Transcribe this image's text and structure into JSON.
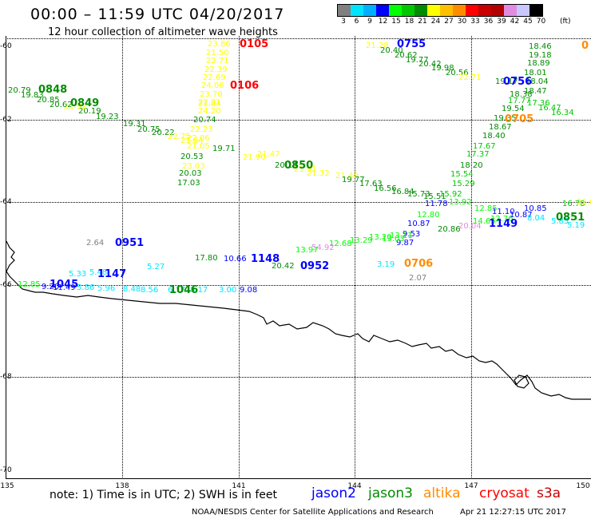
{
  "header": {
    "title": "00:00 – 11:59 UTC 04/20/2017",
    "subtitle": "12 hour collection of altimeter wave heights"
  },
  "legend": {
    "colors": [
      "#808080",
      "#00e5ff",
      "#00b0ff",
      "#0000ff",
      "#00ff00",
      "#00c800",
      "#008c00",
      "#ffff00",
      "#ffbf00",
      "#ff8c00",
      "#ff0000",
      "#c80000",
      "#b40000",
      "#e08ce0",
      "#c8c8ff",
      "#000000"
    ],
    "labels": [
      "3",
      "6",
      "9",
      "12",
      "15",
      "18",
      "21",
      "24",
      "27",
      "30",
      "33",
      "36",
      "39",
      "42",
      "45",
      "70"
    ],
    "unit": "(ft)"
  },
  "axes": {
    "lat_labels": [
      "-60",
      "-62",
      "-64",
      "-66",
      "-68",
      "-70"
    ],
    "lon_labels": [
      "135",
      "138",
      "141",
      "144",
      "147",
      "150"
    ]
  },
  "observations": [
    {
      "t": "20.79",
      "c": "#008c00"
    },
    {
      "t": "19.83",
      "c": "#008c00"
    },
    {
      "t": "20.85",
      "c": "#008c00"
    },
    {
      "t": "20.62",
      "c": "#008c00"
    },
    {
      "t": "20.19",
      "c": "#008c00"
    },
    {
      "t": "21.92",
      "c": "#ffff00"
    },
    {
      "t": "19.23",
      "c": "#008c00"
    },
    {
      "t": "19.31",
      "c": "#008c00"
    },
    {
      "t": "20.75",
      "c": "#008c00"
    },
    {
      "t": "20.22",
      "c": "#008c00"
    },
    {
      "t": "22.75",
      "c": "#ffff00"
    },
    {
      "t": "21.84",
      "c": "#ffff00"
    },
    {
      "t": "19.71",
      "c": "#008c00"
    },
    {
      "t": "20.53",
      "c": "#008c00"
    },
    {
      "t": "20.03",
      "c": "#008c00"
    },
    {
      "t": "17.03",
      "c": "#008c00"
    },
    {
      "t": "23.86",
      "c": "#ffff00"
    },
    {
      "t": "21.50",
      "c": "#ffff00"
    },
    {
      "t": "22.71",
      "c": "#ffff00"
    },
    {
      "t": "22.39",
      "c": "#ffff00"
    },
    {
      "t": "22.69",
      "c": "#ffff00"
    },
    {
      "t": "24.06",
      "c": "#ffff00"
    },
    {
      "t": "23.70",
      "c": "#ffff00"
    },
    {
      "t": "22.31",
      "c": "#ffff00"
    },
    {
      "t": "21.84",
      "c": "#ffff00"
    },
    {
      "t": "24.20",
      "c": "#ffff00"
    },
    {
      "t": "20.74",
      "c": "#008c00"
    },
    {
      "t": "22.23",
      "c": "#ffff00"
    },
    {
      "t": "22.06",
      "c": "#ffff00"
    },
    {
      "t": "21.05",
      "c": "#ffff00"
    },
    {
      "t": "23.03",
      "c": "#ffff00"
    },
    {
      "t": "21.90",
      "c": "#ffff00"
    },
    {
      "t": "21.47",
      "c": "#ffff00"
    },
    {
      "t": "20.14",
      "c": "#008c00"
    },
    {
      "t": "21.91",
      "c": "#ffff00"
    },
    {
      "t": "21.32",
      "c": "#ffff00"
    },
    {
      "t": "21.40",
      "c": "#ffff00"
    },
    {
      "t": "19.77",
      "c": "#008c00"
    },
    {
      "t": "17.63",
      "c": "#008c00"
    },
    {
      "t": "16.56",
      "c": "#008c00"
    },
    {
      "t": "16.84",
      "c": "#008c00"
    },
    {
      "t": "15.73",
      "c": "#008c00"
    },
    {
      "t": "15.51",
      "c": "#008c00"
    },
    {
      "t": "15.92",
      "c": "#00c800"
    },
    {
      "t": "11.78",
      "c": "#0000ff"
    },
    {
      "t": "21.28",
      "c": "#ffff00"
    },
    {
      "t": "20.40",
      "c": "#008c00"
    },
    {
      "t": "20.62",
      "c": "#008c00"
    },
    {
      "t": "19.77",
      "c": "#008c00"
    },
    {
      "t": "20.42",
      "c": "#008c00"
    },
    {
      "t": "19.98",
      "c": "#008c00"
    },
    {
      "t": "20.56",
      "c": "#008c00"
    },
    {
      "t": "22.71",
      "c": "#ffff00"
    },
    {
      "t": "19.17",
      "c": "#008c00"
    },
    {
      "t": "18.46",
      "c": "#008c00"
    },
    {
      "t": "19.18",
      "c": "#008c00"
    },
    {
      "t": "18.89",
      "c": "#008c00"
    },
    {
      "t": "18.01",
      "c": "#008c00"
    },
    {
      "t": "18.04",
      "c": "#008c00"
    },
    {
      "t": "18.47",
      "c": "#008c00"
    },
    {
      "t": "18.38",
      "c": "#008c00"
    },
    {
      "t": "17.77",
      "c": "#00c800"
    },
    {
      "t": "17.36",
      "c": "#00c800"
    },
    {
      "t": "16.47",
      "c": "#00c800"
    },
    {
      "t": "16.34",
      "c": "#00c800"
    },
    {
      "t": "19.54",
      "c": "#008c00"
    },
    {
      "t": "19.35",
      "c": "#008c00"
    },
    {
      "t": "18.67",
      "c": "#008c00"
    },
    {
      "t": "18.40",
      "c": "#008c00"
    },
    {
      "t": "17.67",
      "c": "#00c800"
    },
    {
      "t": "17.37",
      "c": "#00c800"
    },
    {
      "t": "18.20",
      "c": "#008c00"
    },
    {
      "t": "15.54",
      "c": "#00c800"
    },
    {
      "t": "15.29",
      "c": "#00c800"
    },
    {
      "t": "13.92",
      "c": "#00ff00"
    },
    {
      "t": "12.80",
      "c": "#00ff00"
    },
    {
      "t": "10.87",
      "c": "#0000ff"
    },
    {
      "t": "9.53",
      "c": "#0000ff"
    },
    {
      "t": "9.87",
      "c": "#0000ff"
    },
    {
      "t": "13.03",
      "c": "#00ff00"
    },
    {
      "t": "20.86",
      "c": "#008c00"
    },
    {
      "t": "20.04",
      "c": "#e08ce0"
    },
    {
      "t": "12.85",
      "c": "#00ff00"
    },
    {
      "t": "11.10",
      "c": "#0000ff"
    },
    {
      "t": "10.87",
      "c": "#0000ff"
    },
    {
      "t": "14.65",
      "c": "#00ff00"
    },
    {
      "t": "12.76",
      "c": "#00ff00"
    },
    {
      "t": "10.85",
      "c": "#0000ff"
    },
    {
      "t": "16.78",
      "c": "#00c800"
    },
    {
      "t": "8.04",
      "c": "#00e5ff"
    },
    {
      "t": "5.85",
      "c": "#00e5ff"
    },
    {
      "t": "5.19",
      "c": "#00e5ff"
    },
    {
      "t": "22.6",
      "c": "#ffff00"
    },
    {
      "t": "13.97",
      "c": "#00ff00"
    },
    {
      "t": "54.92",
      "c": "#e08ce0"
    },
    {
      "t": "12.68",
      "c": "#00ff00"
    },
    {
      "t": "13.29",
      "c": "#00ff00"
    },
    {
      "t": "13.20",
      "c": "#00ff00"
    },
    {
      "t": "13.11",
      "c": "#00ff00"
    },
    {
      "t": "2.64",
      "c": "#808080"
    },
    {
      "t": "3.19",
      "c": "#00e5ff"
    },
    {
      "t": "2.07",
      "c": "#808080"
    },
    {
      "t": "5.33",
      "c": "#00e5ff"
    },
    {
      "t": "5.48",
      "c": "#00e5ff"
    },
    {
      "t": "5.27",
      "c": "#00e5ff"
    },
    {
      "t": "17.80",
      "c": "#008c00"
    },
    {
      "t": "10.66",
      "c": "#0000ff"
    },
    {
      "t": "20.42",
      "c": "#008c00"
    },
    {
      "t": "12.85",
      "c": "#00ff00"
    },
    {
      "t": "9.20",
      "c": "#0000ff"
    },
    {
      "t": "11.49",
      "c": "#0000ff"
    },
    {
      "t": "5.86",
      "c": "#00e5ff"
    },
    {
      "t": "5.96",
      "c": "#00e5ff"
    },
    {
      "t": "8.48",
      "c": "#00e5ff"
    },
    {
      "t": "8.56",
      "c": "#00e5ff"
    },
    {
      "t": "6.17",
      "c": "#00e5ff"
    },
    {
      "t": "8.17",
      "c": "#00e5ff"
    },
    {
      "t": "3.00",
      "c": "#00e5ff"
    },
    {
      "t": "9.08",
      "c": "#0000ff"
    }
  ],
  "passes": [
    {
      "t": "0848",
      "c": "#008c00"
    },
    {
      "t": "0849",
      "c": "#008c00"
    },
    {
      "t": "0105",
      "c": "#ff0000"
    },
    {
      "t": "0106",
      "c": "#ff0000"
    },
    {
      "t": "0850",
      "c": "#008c00"
    },
    {
      "t": "0755",
      "c": "#0000ff"
    },
    {
      "t": "0756",
      "c": "#0000ff"
    },
    {
      "t": "0705",
      "c": "#ff8c00"
    },
    {
      "t": "0951",
      "c": "#0000ff"
    },
    {
      "t": "1148",
      "c": "#0000ff"
    },
    {
      "t": "0952",
      "c": "#0000ff"
    },
    {
      "t": "0706",
      "c": "#ff8c00"
    },
    {
      "t": "1149",
      "c": "#0000ff"
    },
    {
      "t": "0851",
      "c": "#008c00"
    },
    {
      "t": "1147",
      "c": "#0000ff"
    },
    {
      "t": "1045",
      "c": "#0000ff"
    },
    {
      "t": "1046",
      "c": "#008c00"
    },
    {
      "t": "0",
      "c": "#ff8c00"
    }
  ],
  "footer": {
    "note": "note: 1) Time is in UTC; 2) SWH is in feet",
    "satellites": [
      {
        "name": "jason2",
        "color": "#0000ff"
      },
      {
        "name": "jason3",
        "color": "#008c00"
      },
      {
        "name": "altika",
        "color": "#ff8c00"
      },
      {
        "name": "cryosat",
        "color": "#ff0000"
      },
      {
        "name": "s3a",
        "color": "#c80000"
      }
    ],
    "credit": "NOAA/NESDIS Center for Satellite Applications and Research",
    "timestamp": "Apr 21 12:27:15 UTC 2017"
  }
}
